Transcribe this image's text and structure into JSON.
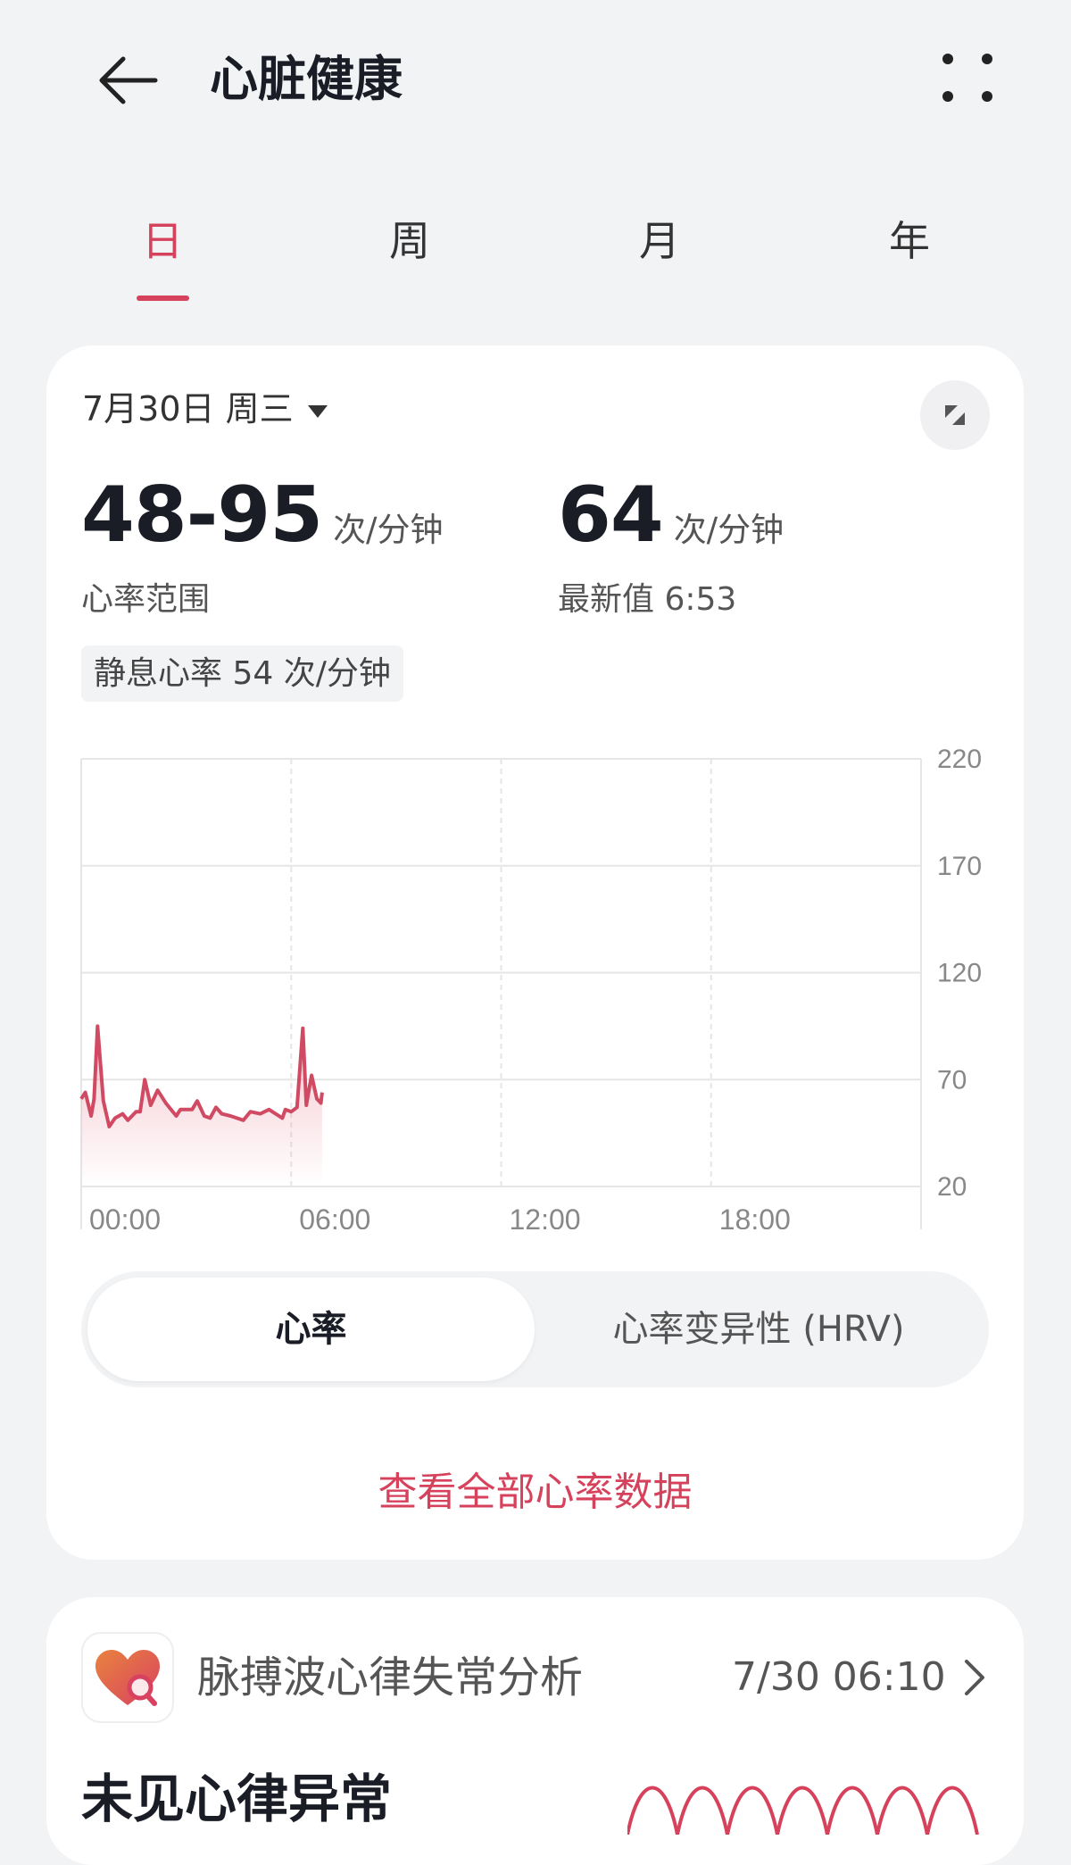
{
  "header": {
    "title": "心脏健康",
    "back_icon": "arrow-left-icon",
    "more_icon": "more-dots-icon"
  },
  "tabs": [
    {
      "label": "日",
      "active": true
    },
    {
      "label": "周"
    },
    {
      "label": "月"
    },
    {
      "label": "年"
    }
  ],
  "summary": {
    "date": "7月30日 周三",
    "range_value": "48-95",
    "range_unit": "次/分钟",
    "range_label": "心率范围",
    "latest_value": "64",
    "latest_unit": "次/分钟",
    "latest_label": "最新值 6:53",
    "resting": "静息心率 54 次/分钟"
  },
  "chart_data": {
    "type": "area",
    "y_ticks": [
      "220",
      "170",
      "120",
      "70",
      "20"
    ],
    "x_ticks": [
      "00:00",
      "06:00",
      "12:00",
      "18:00"
    ],
    "ylim": [
      20,
      220
    ],
    "xlim": [
      "00:00",
      "24:00"
    ],
    "color": "#cf4a62",
    "grid": true,
    "series": [
      {
        "points": [
          [
            "00:00",
            61
          ],
          [
            "00:07",
            64
          ],
          [
            "00:17",
            53
          ],
          [
            "00:22",
            61
          ],
          [
            "00:28",
            95
          ],
          [
            "00:38",
            60
          ],
          [
            "00:48",
            48
          ],
          [
            "00:58",
            52
          ],
          [
            "01:11",
            54
          ],
          [
            "01:20",
            51
          ],
          [
            "01:34",
            55
          ],
          [
            "01:41",
            55
          ],
          [
            "01:49",
            70
          ],
          [
            "01:59",
            58
          ],
          [
            "02:11",
            65
          ],
          [
            "02:25",
            59
          ],
          [
            "02:43",
            53
          ],
          [
            "02:50",
            56
          ],
          [
            "03:10",
            56
          ],
          [
            "03:19",
            60
          ],
          [
            "03:31",
            53
          ],
          [
            "03:41",
            52
          ],
          [
            "03:51",
            57
          ],
          [
            "04:01",
            54
          ],
          [
            "04:16",
            53
          ],
          [
            "04:38",
            51
          ],
          [
            "04:50",
            55
          ],
          [
            "05:07",
            54
          ],
          [
            "05:22",
            56
          ],
          [
            "05:45",
            52
          ],
          [
            "05:50",
            56
          ],
          [
            "06:00",
            55
          ],
          [
            "06:10",
            57
          ],
          [
            "06:20",
            94
          ],
          [
            "06:26",
            58
          ],
          [
            "06:35",
            72
          ],
          [
            "06:44",
            61
          ],
          [
            "06:51",
            59
          ],
          [
            "06:53",
            64
          ]
        ]
      }
    ]
  },
  "segment": {
    "selected": "心率",
    "other": "心率变异性 (HRV)"
  },
  "link": "查看全部心率数据",
  "arrhythmia": {
    "title": "脉搏波心律失常分析",
    "time": "7/30 06:10",
    "status": "未见心律异常",
    "icon": "heart-search-icon"
  }
}
